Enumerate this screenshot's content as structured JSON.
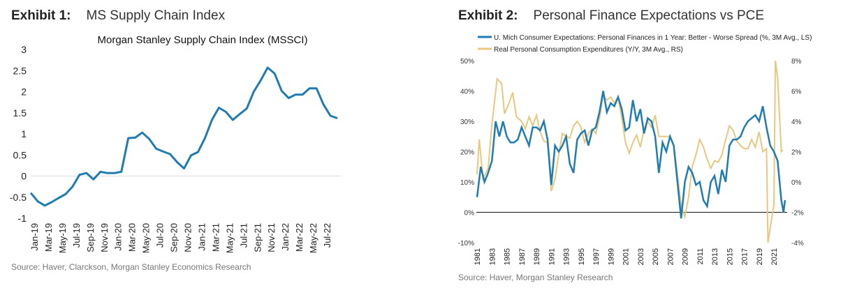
{
  "exhibit1": {
    "label": "Exhibit 1:",
    "title": "MS Supply Chain Index",
    "source": "Source: Haver, Clarckson, Morgan Stanley Economics Research"
  },
  "exhibit2": {
    "label": "Exhibit 2:",
    "title": "Personal Finance Expectations vs PCE",
    "source": "Source: Haver, Morgan Stanley Research"
  },
  "chart_data": [
    {
      "type": "line",
      "title": "Morgan Stanley Supply Chain Index (MSSCI)",
      "xlabel": "",
      "ylabel": "",
      "ylim": [
        -1,
        3
      ],
      "yticks": [
        "3",
        "2.5",
        "2",
        "1.5",
        "1",
        "0.5",
        "0",
        "-0.5",
        "-1"
      ],
      "xticks": [
        "Jan-19",
        "Mar-19",
        "May-19",
        "Jul-19",
        "Sep-19",
        "Nov-19",
        "Jan-20",
        "Mar-20",
        "May-20",
        "Jul-20",
        "Sep-20",
        "Nov-20",
        "Jan-21",
        "Mar-21",
        "May-21",
        "Jul-21",
        "Sep-21",
        "Nov-21",
        "Jan-22",
        "Mar-22",
        "May-22",
        "Jul-22"
      ],
      "color": "#1f7bb0",
      "series": [
        {
          "name": "MSSCI",
          "values": [
            -0.4,
            -0.6,
            -0.7,
            -0.62,
            -0.52,
            -0.43,
            -0.25,
            0.03,
            0.07,
            -0.08,
            0.1,
            0.07,
            0.07,
            0.1,
            0.9,
            0.91,
            1.03,
            0.88,
            0.65,
            0.58,
            0.52,
            0.33,
            0.18,
            0.49,
            0.57,
            0.9,
            1.33,
            1.62,
            1.52,
            1.33,
            1.47,
            1.6,
            2.0,
            2.27,
            2.57,
            2.43,
            2.02,
            1.85,
            1.93,
            1.93,
            2.08,
            2.08,
            1.7,
            1.43,
            1.37
          ]
        }
      ]
    },
    {
      "type": "line",
      "title": "",
      "xlim": [
        1981,
        2022.6
      ],
      "ylim_left": [
        -10,
        50
      ],
      "ylim_right": [
        -4,
        8
      ],
      "yticks_left": [
        "50%",
        "40%",
        "30%",
        "20%",
        "10%",
        "0%",
        "-10%"
      ],
      "yticks_right": [
        "8%",
        "6%",
        "4%",
        "2%",
        "0%",
        "-2%",
        "-4%"
      ],
      "xticks": [
        "1981",
        "1983",
        "1985",
        "1987",
        "1989",
        "1991",
        "1993",
        "1995",
        "1997",
        "1999",
        "2001",
        "2003",
        "2005",
        "2007",
        "2009",
        "2011",
        "2013",
        "2015",
        "2017",
        "2019",
        "2021"
      ],
      "legend": "top-left",
      "series": [
        {
          "name": "U. Mich Consumer Expectations: Personal Finances in 1 Year: Better - Worse Spread (%, 3M Avg., LS)",
          "axis": "left",
          "color": "#1f7bb0",
          "x": [
            1981,
            1981.5,
            1982,
            1982.5,
            1983,
            1983.5,
            1984,
            1984.5,
            1985,
            1985.5,
            1986,
            1986.5,
            1987,
            1987.5,
            1988,
            1988.5,
            1989,
            1989.5,
            1990,
            1990.5,
            1991,
            1991.5,
            1992,
            1992.5,
            1993,
            1993.5,
            1994,
            1994.5,
            1995,
            1995.5,
            1996,
            1996.5,
            1997,
            1997.5,
            1998,
            1998.5,
            1999,
            1999.5,
            2000,
            2000.5,
            2001,
            2001.5,
            2002,
            2002.5,
            2003,
            2003.5,
            2004,
            2004.5,
            2005,
            2005.5,
            2006,
            2006.5,
            2007,
            2007.5,
            2008,
            2008.5,
            2009,
            2009.5,
            2010,
            2010.5,
            2011,
            2011.5,
            2012,
            2012.5,
            2013,
            2013.5,
            2014,
            2014.5,
            2015,
            2015.5,
            2016,
            2016.5,
            2017,
            2017.5,
            2018,
            2018.5,
            2019,
            2019.5,
            2020,
            2020.5,
            2021,
            2021.5,
            2022,
            2022.3,
            2022.5
          ],
          "values": [
            5,
            15,
            10,
            13,
            17,
            30,
            25,
            30,
            25,
            23,
            23,
            24,
            28,
            25,
            22,
            28,
            28,
            27,
            30,
            24,
            9,
            22,
            20,
            22,
            25,
            16,
            13,
            24,
            26,
            27,
            22,
            27,
            28,
            33,
            40,
            33,
            36,
            35,
            38,
            34,
            27,
            28,
            37,
            30,
            34,
            26,
            31,
            30,
            25,
            13,
            23,
            20,
            25,
            22,
            10,
            -2,
            10,
            15,
            13,
            9,
            10,
            4,
            2,
            10,
            12,
            6,
            14,
            10,
            22,
            24,
            24,
            25,
            28,
            30,
            31,
            32,
            30,
            35,
            28,
            22,
            20,
            17,
            4,
            0,
            4
          ]
        },
        {
          "name": "Real Personal Consumption Expenditures (Y/Y, 3M Avg., RS)",
          "axis": "right",
          "color": "#e8c77e",
          "x": [
            1981,
            1981.3,
            1981.8,
            1982.5,
            1983,
            1983.7,
            1984.3,
            1984.7,
            1985.3,
            1985.8,
            1986.3,
            1987,
            1987.5,
            1988,
            1988.5,
            1989,
            1989.5,
            1990,
            1990.5,
            1991,
            1991.5,
            1992,
            1992.5,
            1993,
            1993.5,
            1994,
            1994.5,
            1995,
            1995.5,
            1996,
            1996.5,
            1997,
            1997.5,
            1998,
            1998.5,
            1999,
            1999.5,
            2000,
            2000.5,
            2001,
            2001.5,
            2002,
            2002.5,
            2003,
            2003.5,
            2004,
            2004.5,
            2005,
            2005.5,
            2006,
            2006.5,
            2007,
            2007.5,
            2008,
            2008.5,
            2009,
            2009.5,
            2010,
            2010.5,
            2011,
            2011.5,
            2012,
            2012.5,
            2013,
            2013.5,
            2014,
            2014.5,
            2015,
            2015.5,
            2016,
            2016.5,
            2017,
            2017.5,
            2018,
            2018.5,
            2019,
            2019.5,
            2020,
            2020.2,
            2020.5,
            2021,
            2021.2,
            2021.5,
            2022,
            2022.2
          ],
          "values": [
            0.5,
            2.8,
            0.2,
            0.9,
            3.8,
            6.8,
            6.5,
            4.5,
            5.2,
            5.9,
            4.3,
            4,
            3.5,
            4.3,
            3.7,
            4.4,
            3.3,
            2.7,
            2.6,
            -0.6,
            0.2,
            1.8,
            3.2,
            3,
            2.9,
            3.7,
            4,
            3.6,
            2.6,
            3.2,
            3.5,
            3.2,
            4.2,
            5.7,
            5.4,
            5.6,
            5.2,
            5.6,
            4.2,
            2.6,
            1.9,
            2.6,
            3.1,
            2.3,
            3.5,
            4,
            3.6,
            4.4,
            3,
            3,
            3,
            3,
            2.4,
            0.5,
            -1.6,
            -2.3,
            -1,
            1,
            1.8,
            2.8,
            2.3,
            1.5,
            0.9,
            1.4,
            1.3,
            1.8,
            2.8,
            3.7,
            3.4,
            2.7,
            2.4,
            2.2,
            2.2,
            2.8,
            2.3,
            3.3,
            2,
            2.2,
            -4,
            -3,
            -1.5,
            8,
            6.9,
            2,
            2.1
          ]
        }
      ]
    }
  ]
}
